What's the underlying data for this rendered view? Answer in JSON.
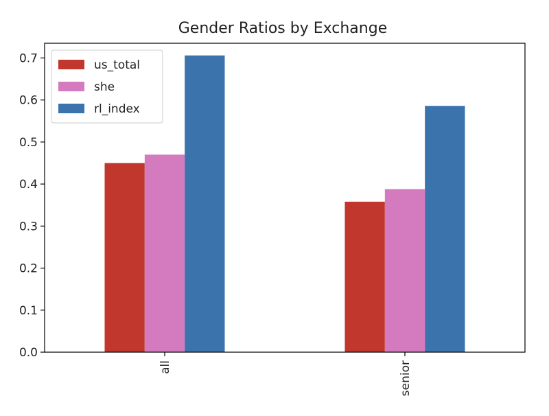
{
  "chart_data": {
    "type": "bar",
    "title": "Gender Ratios by Exchange",
    "xlabel": "",
    "ylabel": "",
    "categories": [
      "all",
      "senior"
    ],
    "series": [
      {
        "name": "us_total",
        "values": [
          0.45,
          0.358
        ],
        "color": "#c1362d"
      },
      {
        "name": "she",
        "values": [
          0.47,
          0.388
        ],
        "color": "#d47bbf"
      },
      {
        "name": "rl_index",
        "values": [
          0.706,
          0.586
        ],
        "color": "#3b73ad"
      }
    ],
    "ylim": [
      0,
      0.735
    ],
    "yticks": [
      "0.0",
      "0.1",
      "0.2",
      "0.3",
      "0.4",
      "0.5",
      "0.6",
      "0.7"
    ],
    "ytick_values": [
      0,
      0.1,
      0.2,
      0.3,
      0.4,
      0.5,
      0.6,
      0.7
    ],
    "grid": false,
    "legend_position": "top-left",
    "xtick_rotation": "vertical"
  }
}
